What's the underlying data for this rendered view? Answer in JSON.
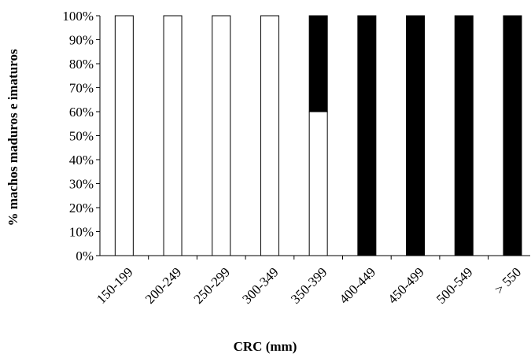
{
  "chart_data": {
    "type": "stacked_bar",
    "x_label": "CRC (mm)",
    "y_label": "% machos maduros e imaturos",
    "categories": [
      "150-199",
      "200-249",
      "250-299",
      "300-349",
      "350-399",
      "400-449",
      "450-499",
      "500-549",
      "> 550"
    ],
    "series": [
      {
        "color": "#ffffff",
        "values": [
          100,
          100,
          100,
          100,
          60,
          0,
          0,
          0,
          0
        ]
      },
      {
        "color": "#000000",
        "values": [
          0,
          0,
          0,
          0,
          40,
          100,
          100,
          100,
          100
        ]
      }
    ],
    "ylim": [
      0,
      100
    ],
    "yticks": [
      {
        "value": 0,
        "label": "0%"
      },
      {
        "value": 10,
        "label": "10%"
      },
      {
        "value": 20,
        "label": "20%"
      },
      {
        "value": 30,
        "label": "30%"
      },
      {
        "value": 40,
        "label": "40%"
      },
      {
        "value": 50,
        "label": "50%"
      },
      {
        "value": 60,
        "label": "60%"
      },
      {
        "value": 70,
        "label": "70%"
      },
      {
        "value": 80,
        "label": "80%"
      },
      {
        "value": 90,
        "label": "90%"
      },
      {
        "value": 100,
        "label": "100%"
      }
    ],
    "grid": false
  }
}
